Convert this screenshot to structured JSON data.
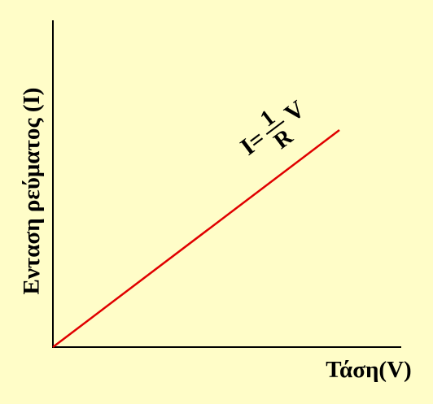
{
  "axes": {
    "y_label": "Ενταση ρεύματος (I)",
    "x_label": "Τάση(V)"
  },
  "formula": {
    "lhs": "I=",
    "numerator": "1",
    "denominator": "R",
    "variable": "V"
  }
}
